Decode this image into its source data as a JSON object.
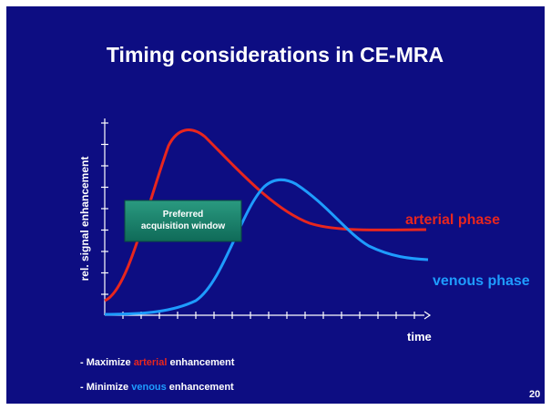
{
  "title": "Timing considerations in CE-MRA",
  "axis": {
    "y_label": "rel. signal enhancement",
    "x_label": "time"
  },
  "window_box": {
    "lines": [
      "Preferred",
      "acquisition window"
    ]
  },
  "curve_labels": {
    "arterial": "arterial phase",
    "venous": "venous phase"
  },
  "bullets": [
    {
      "before": "- Maximize ",
      "highlight": "arterial",
      "after": " enhancement"
    },
    {
      "before": "- Minimize ",
      "highlight": "venous",
      "after": " enhancement"
    }
  ],
  "page_number": "20"
}
